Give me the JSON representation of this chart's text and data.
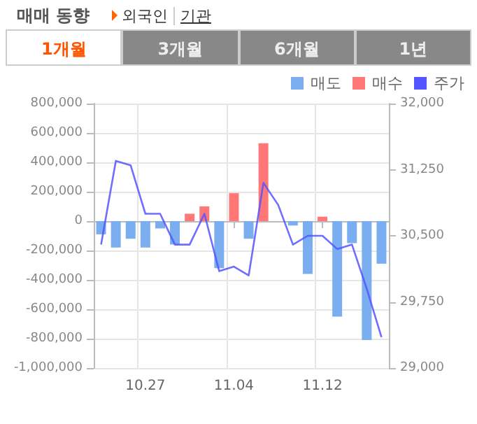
{
  "chart_data": {
    "type": "bar",
    "title": "매매 동향",
    "annotations": [
      "외국인",
      "기관",
      "1개월",
      "3개월",
      "6개월",
      "1년"
    ],
    "categories": [
      null,
      null,
      null,
      "10.27",
      null,
      null,
      null,
      null,
      null,
      "11.04",
      null,
      null,
      null,
      null,
      null,
      "11.12",
      null,
      null,
      null,
      null
    ],
    "stacked": true,
    "series": [
      {
        "name": "매도",
        "color": "#7aaef0",
        "values": [
          -90000,
          -180000,
          -120000,
          -180000,
          -50000,
          -160000,
          null,
          null,
          -320000,
          null,
          -120000,
          null,
          null,
          -30000,
          -360000,
          null,
          -650000,
          -150000,
          -810000,
          -290000
        ]
      },
      {
        "name": "매수",
        "color": "#ff7777",
        "values": [
          0,
          0,
          0,
          0,
          0,
          0,
          50000,
          100000,
          0,
          190000,
          0,
          530000,
          0,
          0,
          0,
          30000,
          0,
          0,
          0,
          0
        ]
      },
      {
        "name": "주가",
        "type": "line",
        "axis": "y2",
        "color": "#5555ff",
        "marker": "none",
        "values": [
          30400,
          31350,
          31300,
          30750,
          30750,
          30400,
          30400,
          30750,
          30100,
          30150,
          30050,
          31100,
          30850,
          30400,
          30500,
          30500,
          30350,
          30400,
          29900,
          29350
        ]
      }
    ],
    "ylim": [
      -1000000,
      800000
    ],
    "yticks": [
      {
        "value": -1000000,
        "label": "-1,000,000"
      },
      {
        "value": -800000,
        "label": "-800,000"
      },
      {
        "value": -600000,
        "label": "-600,000"
      },
      {
        "value": -400000,
        "label": "-400,000"
      },
      {
        "value": -200000,
        "label": "-200,000"
      },
      {
        "value": 0,
        "label": "0"
      },
      {
        "value": 200000,
        "label": "200,000"
      },
      {
        "value": 400000,
        "label": "400,000"
      },
      {
        "value": 600000,
        "label": "600,000"
      },
      {
        "value": 800000,
        "label": "800,000"
      }
    ],
    "y2lim": [
      29000,
      32000
    ],
    "y2ticks": [
      {
        "value": 29000,
        "label": "29,000"
      },
      {
        "value": 29750,
        "label": "29,750"
      },
      {
        "value": 30500,
        "label": "30,500"
      },
      {
        "value": 31250,
        "label": "31,250"
      },
      {
        "value": 32000,
        "label": "32,000"
      }
    ],
    "grid": true,
    "legend": "top right"
  }
}
